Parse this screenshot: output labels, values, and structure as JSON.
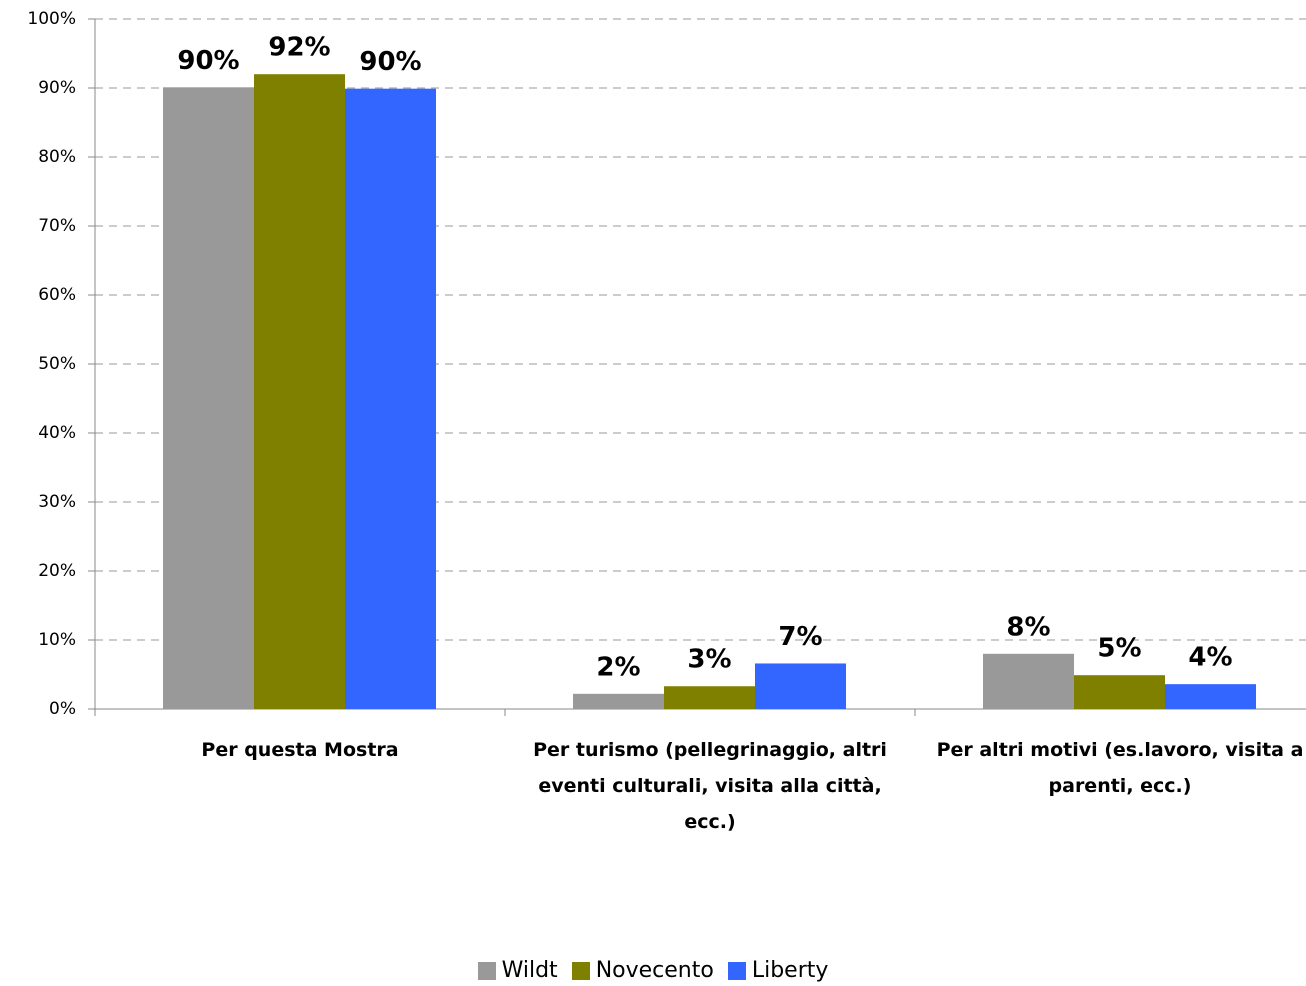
{
  "chart_data": {
    "type": "bar",
    "categories": [
      "Per questa Mostra",
      "Per turismo (pellegrinaggio, altri eventi culturali, visita alla città, ecc.)",
      "Per altri motivi (es.lavoro, visita a parenti, ecc.)"
    ],
    "series": [
      {
        "name": "Wildt",
        "color": "#999999",
        "values": [
          90.1,
          2.2,
          8.0
        ],
        "value_labels": [
          "90%",
          "2%",
          "8%"
        ]
      },
      {
        "name": "Novecento",
        "color": "#808000",
        "values": [
          92.0,
          3.3,
          4.9
        ],
        "value_labels": [
          "92%",
          "3%",
          "5%"
        ]
      },
      {
        "name": "Liberty",
        "color": "#3366ff",
        "values": [
          89.9,
          6.6,
          3.6
        ],
        "value_labels": [
          "90%",
          "7%",
          "4%"
        ]
      }
    ],
    "ylim": [
      0,
      100
    ],
    "yticks": [
      {
        "value": 0,
        "label": "0%"
      },
      {
        "value": 10,
        "label": "10%"
      },
      {
        "value": 20,
        "label": "20%"
      },
      {
        "value": 30,
        "label": "30%"
      },
      {
        "value": 40,
        "label": "40%"
      },
      {
        "value": 50,
        "label": "50%"
      },
      {
        "value": 60,
        "label": "60%"
      },
      {
        "value": 70,
        "label": "70%"
      },
      {
        "value": 80,
        "label": "80%"
      },
      {
        "value": 90,
        "label": "90%"
      },
      {
        "value": 100,
        "label": "100%"
      }
    ],
    "grid": true,
    "legend": "bottom"
  }
}
